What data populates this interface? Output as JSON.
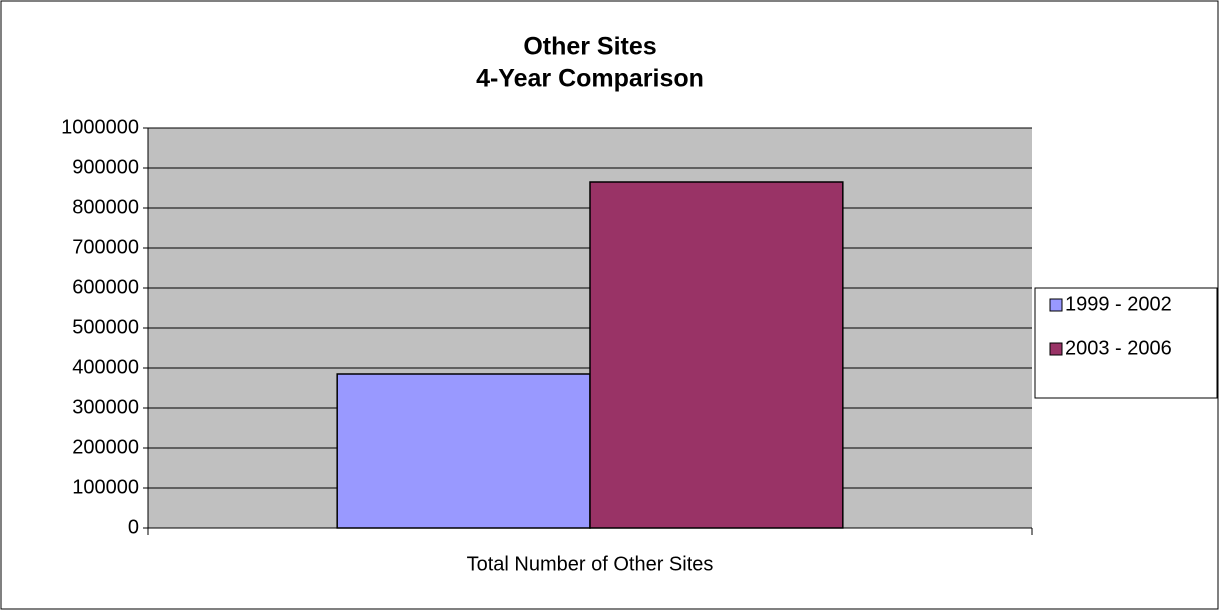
{
  "chart_data": {
    "type": "bar",
    "title": "Other Sites",
    "subtitle": "4-Year Comparison",
    "categories": [
      "Total Number of Other Sites"
    ],
    "series": [
      {
        "name": "1999 - 2002",
        "color": "#9999ff",
        "values": [
          385000
        ]
      },
      {
        "name": "2003 - 2006",
        "color": "#993366",
        "values": [
          865000
        ]
      }
    ],
    "ylim": [
      0,
      1000000
    ],
    "yticks": [
      0,
      100000,
      200000,
      300000,
      400000,
      500000,
      600000,
      700000,
      800000,
      900000,
      1000000
    ],
    "grid": true,
    "legend": "right",
    "plot_background": "#c0c0c0"
  }
}
